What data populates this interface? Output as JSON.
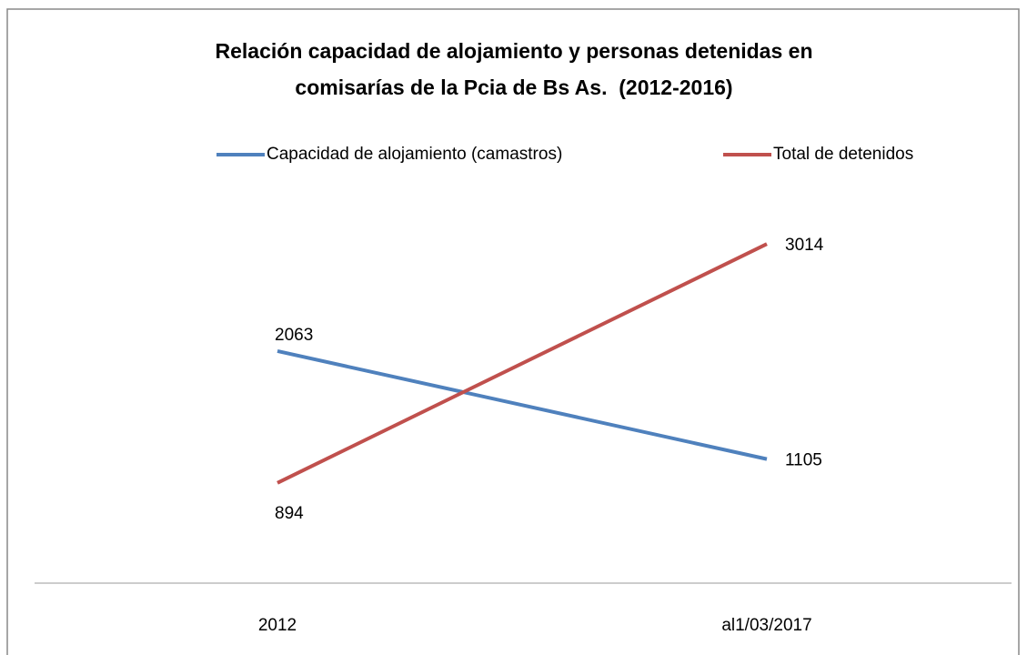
{
  "chart_data": {
    "type": "line",
    "title": "Relación capacidad de alojamiento y personas detenidas en comisarías de la Pcia de Bs As.  (2012-2016)",
    "categories": [
      "2012",
      "al1/03/2017"
    ],
    "series": [
      {
        "name": "Capacidad de alojamiento (camastros)",
        "color": "#4f81bd",
        "values": [
          2063,
          1105
        ]
      },
      {
        "name": "Total de detenidos",
        "color": "#c0504d",
        "values": [
          894,
          3014
        ]
      }
    ],
    "ylim": [
      0,
      3500
    ],
    "legend": "top"
  }
}
